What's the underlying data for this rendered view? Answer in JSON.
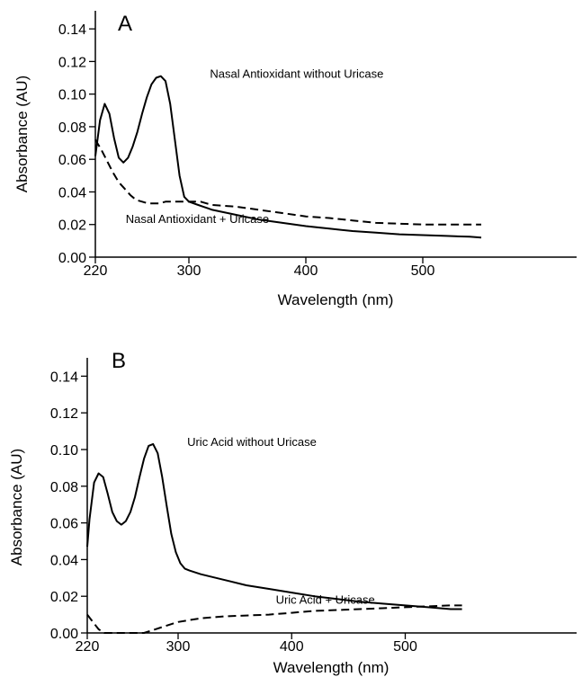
{
  "chart_data": [
    {
      "panel": "A",
      "type": "line",
      "xlabel": "Wavelength (nm)",
      "ylabel": "Absorbance (AU)",
      "xlim": [
        220,
        550
      ],
      "ylim": [
        0,
        0.15
      ],
      "xticks": [
        220,
        300,
        400,
        500
      ],
      "yticks": [
        0.0,
        0.02,
        0.04,
        0.06,
        0.08,
        0.1,
        0.12,
        0.14
      ],
      "xtick_labels": [
        "220",
        "300",
        "400",
        "500"
      ],
      "ytick_labels": [
        "0.00",
        "0.02",
        "0.04",
        "0.06",
        "0.08",
        "0.10",
        "0.12",
        "0.14"
      ],
      "grid": false,
      "series": [
        {
          "name": "Nasal Antioxidant without Uricase",
          "style": "solid",
          "x": [
            220,
            224,
            228,
            232,
            236,
            240,
            244,
            248,
            252,
            256,
            260,
            264,
            268,
            272,
            276,
            280,
            284,
            288,
            292,
            296,
            300,
            304,
            308,
            312,
            316,
            320,
            330,
            340,
            360,
            380,
            400,
            420,
            440,
            460,
            480,
            500,
            520,
            540,
            550
          ],
          "y": [
            0.062,
            0.084,
            0.094,
            0.088,
            0.073,
            0.061,
            0.058,
            0.061,
            0.068,
            0.077,
            0.088,
            0.098,
            0.106,
            0.11,
            0.111,
            0.108,
            0.094,
            0.072,
            0.05,
            0.037,
            0.034,
            0.033,
            0.032,
            0.031,
            0.03,
            0.029,
            0.0275,
            0.026,
            0.023,
            0.021,
            0.019,
            0.0175,
            0.016,
            0.015,
            0.014,
            0.0135,
            0.013,
            0.0125,
            0.012
          ]
        },
        {
          "name": "Nasal Antioxidant + Uricase",
          "style": "dashed",
          "x": [
            220,
            225,
            230,
            235,
            240,
            245,
            250,
            255,
            260,
            265,
            270,
            275,
            280,
            290,
            300,
            310,
            315,
            320,
            340,
            360,
            380,
            400,
            420,
            440,
            460,
            480,
            500,
            520,
            540,
            550
          ],
          "y": [
            0.072,
            0.066,
            0.059,
            0.052,
            0.046,
            0.042,
            0.038,
            0.035,
            0.034,
            0.033,
            0.033,
            0.033,
            0.034,
            0.034,
            0.034,
            0.034,
            0.033,
            0.032,
            0.031,
            0.029,
            0.027,
            0.025,
            0.024,
            0.0225,
            0.021,
            0.0205,
            0.02,
            0.02,
            0.02,
            0.02
          ]
        }
      ],
      "annotations": [
        {
          "text": "Nasal Antioxidant without Uricase",
          "x": 318,
          "y": 0.11
        },
        {
          "text": "Nasal Antioxidant + Uricase",
          "x": 246,
          "y": 0.021
        }
      ]
    },
    {
      "panel": "B",
      "type": "line",
      "xlabel": "Wavelength (nm)",
      "ylabel": "Absorbance (AU)",
      "xlim": [
        220,
        550
      ],
      "ylim": [
        0,
        0.15
      ],
      "xticks": [
        220,
        300,
        400,
        500
      ],
      "yticks": [
        0.0,
        0.02,
        0.04,
        0.06,
        0.08,
        0.1,
        0.12,
        0.14
      ],
      "xtick_labels": [
        "220",
        "300",
        "400",
        "500"
      ],
      "ytick_labels": [
        "0.00",
        "0.02",
        "0.04",
        "0.06",
        "0.08",
        "0.10",
        "0.12",
        "0.14"
      ],
      "grid": false,
      "series": [
        {
          "name": "Uric Acid without Uricase",
          "style": "solid",
          "x": [
            220,
            222,
            226,
            230,
            234,
            238,
            242,
            246,
            250,
            254,
            258,
            262,
            266,
            270,
            274,
            278,
            282,
            286,
            290,
            294,
            298,
            302,
            306,
            310,
            320,
            340,
            360,
            380,
            400,
            420,
            440,
            460,
            480,
            500,
            520,
            540,
            550
          ],
          "y": [
            0.047,
            0.062,
            0.082,
            0.087,
            0.085,
            0.076,
            0.066,
            0.061,
            0.059,
            0.061,
            0.066,
            0.074,
            0.085,
            0.095,
            0.102,
            0.103,
            0.098,
            0.085,
            0.069,
            0.054,
            0.044,
            0.038,
            0.035,
            0.034,
            0.032,
            0.029,
            0.026,
            0.024,
            0.022,
            0.02,
            0.0185,
            0.017,
            0.016,
            0.015,
            0.014,
            0.013,
            0.013
          ]
        },
        {
          "name": "Uric Acid + Uricase",
          "style": "dashed",
          "x": [
            220,
            225,
            230,
            235,
            240,
            250,
            260,
            270,
            280,
            290,
            300,
            310,
            320,
            340,
            360,
            380,
            400,
            420,
            440,
            460,
            480,
            500,
            520,
            540,
            550
          ],
          "y": [
            0.01,
            0.006,
            0.002,
            0.0,
            0.0,
            0.0,
            0.0,
            0.0,
            0.002,
            0.004,
            0.006,
            0.007,
            0.008,
            0.009,
            0.0095,
            0.01,
            0.011,
            0.012,
            0.0125,
            0.013,
            0.0135,
            0.014,
            0.0145,
            0.015,
            0.015
          ]
        }
      ],
      "annotations": [
        {
          "text": "Uric Acid without Uricase",
          "x": 308,
          "y": 0.102
        },
        {
          "text": "Uric Acid + Uricase",
          "x": 386,
          "y": 0.016
        }
      ]
    }
  ]
}
